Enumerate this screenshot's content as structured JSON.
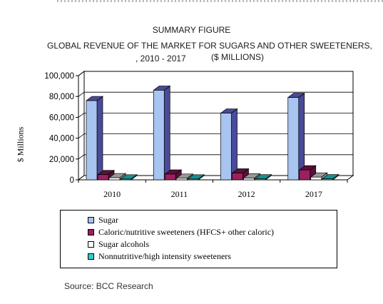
{
  "header": {
    "summary": "SUMMARY FIGURE",
    "title_line1": "GLOBAL REVENUE OF THE MARKET FOR SUGARS AND OTHER SWEETENERS,",
    "title_line2": ", 2010 - 2017",
    "title_units": "($ MILLIONS)"
  },
  "source": "Source: BCC Research",
  "chart_data": {
    "type": "bar",
    "title": "GLOBAL REVENUE OF THE MARKET FOR SUGARS AND OTHER SWEETENERS, 2010 - 2017 ($ MILLIONS)",
    "ylabel": "$ Millions",
    "xlabel": "",
    "ylim": [
      0,
      100000
    ],
    "y_ticks": [
      0,
      20000,
      40000,
      60000,
      80000,
      100000
    ],
    "y_tick_labels": [
      "0",
      "20,000",
      "40,000",
      "60,000",
      "80,000",
      "100,000"
    ],
    "grid": true,
    "legend_position": "bottom",
    "categories": [
      "2010",
      "2011",
      "2012",
      "2017"
    ],
    "series": [
      {
        "name": "Sugar",
        "values": [
          76000,
          86000,
          64000,
          79000
        ],
        "color": "#a8c4f0",
        "side": "#4a4a9a"
      },
      {
        "name": "Caloric/nutritive sweeteners (HFCS+ other caloric)",
        "values": [
          5000,
          5500,
          6500,
          9500
        ],
        "color": "#9a2060",
        "side": "#5a1038"
      },
      {
        "name": "Sugar alcohols",
        "values": [
          2000,
          1500,
          1700,
          2600
        ],
        "color": "#ffffff",
        "side": "#999999"
      },
      {
        "name": "Nonnutritive/high intensity sweeteners",
        "values": [
          800,
          800,
          900,
          1000
        ],
        "color": "#33cccc",
        "side": "#178f8f"
      }
    ]
  }
}
